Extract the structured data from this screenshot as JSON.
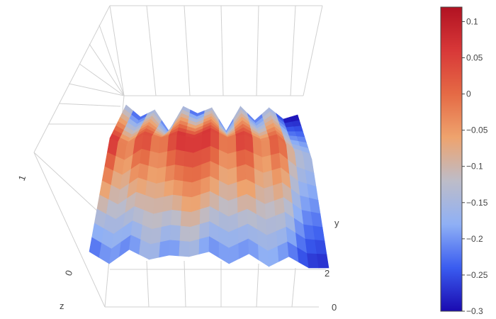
{
  "chart_data": {
    "type": "surface",
    "colorscale": "coolwarm",
    "colorscale_stops": [
      "#1a0ab0",
      "#3a5cf0",
      "#8fb0f5",
      "#bdbcc8",
      "#eea36e",
      "#e56a45",
      "#d83838",
      "#b11222"
    ],
    "colorbar": {
      "range": [
        -0.3,
        0.12
      ],
      "ticks": [
        {
          "value": 0.1,
          "label": "0.1"
        },
        {
          "value": 0.05,
          "label": "0.05"
        },
        {
          "value": 0,
          "label": "0"
        },
        {
          "value": -0.05,
          "label": "−0.05"
        },
        {
          "value": -0.1,
          "label": "−0.1"
        },
        {
          "value": -0.15,
          "label": "−0.15"
        },
        {
          "value": -0.2,
          "label": "−0.2"
        },
        {
          "value": -0.25,
          "label": "−0.25"
        },
        {
          "value": -0.3,
          "label": "−0.3"
        }
      ]
    },
    "axes": {
      "y": {
        "title": "y",
        "tick_labels": [
          "0",
          "2"
        ]
      },
      "z": {
        "title": "z",
        "tick_labels": [
          "0",
          "1"
        ]
      }
    },
    "surface": {
      "columns": 13,
      "top_row": [
        -0.11,
        -0.28,
        -0.12,
        -0.25,
        -0.12,
        -0.28,
        -0.11,
        -0.25,
        -0.12,
        -0.26,
        -0.12,
        -0.3,
        -0.3
      ],
      "middle_row": [
        0.11,
        -0.05,
        0.07,
        -0.03,
        0.08,
        0.07,
        0.08,
        -0.03,
        0.09,
        -0.05,
        0.05,
        -0.12,
        -0.15
      ],
      "bottom_row": [
        -0.25,
        -0.2,
        -0.23,
        -0.15,
        -0.23,
        -0.15,
        -0.22,
        -0.2,
        -0.22,
        -0.18,
        -0.22,
        -0.27,
        -0.28
      ]
    }
  }
}
